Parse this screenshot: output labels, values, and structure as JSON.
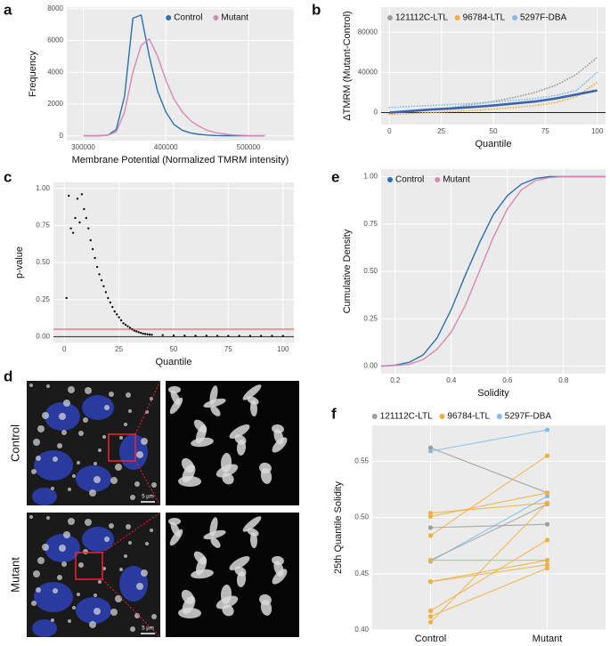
{
  "chart_data": [
    {
      "type": "line",
      "panel_label": "a",
      "xlabel": "Membrane Potential (Normalized TMRM intensity)",
      "ylabel": "Frequency",
      "x": [
        300000,
        310000,
        320000,
        330000,
        340000,
        350000,
        360000,
        370000,
        380000,
        390000,
        400000,
        410000,
        420000,
        430000,
        440000,
        450000,
        460000,
        480000,
        500000,
        520000
      ],
      "series": [
        {
          "name": "Control",
          "color": "#2c6fad",
          "values": [
            0,
            0,
            10,
            50,
            400,
            2500,
            7400,
            7600,
            5000,
            2800,
            1500,
            700,
            350,
            180,
            90,
            50,
            20,
            5,
            0,
            0
          ]
        },
        {
          "name": "Mutant",
          "color": "#d58bb0",
          "values": [
            0,
            0,
            10,
            40,
            250,
            1500,
            4000,
            5700,
            6100,
            5000,
            3500,
            2300,
            1500,
            950,
            600,
            350,
            200,
            60,
            15,
            0
          ]
        }
      ],
      "xlim": [
        280000,
        555000
      ],
      "xticks": [
        300000,
        400000,
        500000
      ],
      "ylim": [
        -300,
        8100
      ],
      "yticks": [
        0,
        2000,
        4000,
        6000,
        8000
      ],
      "grid": true,
      "legend": "top-right"
    },
    {
      "type": "line",
      "panel_label": "b",
      "xlabel": "Quantile",
      "ylabel": "ΔTMRM (Mutant-Control)",
      "x": [
        0,
        10,
        20,
        30,
        40,
        50,
        60,
        70,
        80,
        90,
        100
      ],
      "series": [
        {
          "name": "121112C-LTL",
          "color": "#9e9e9e",
          "dotted": true,
          "values": [
            -1000,
            1000,
            3000,
            5000,
            8000,
            11000,
            15000,
            20000,
            27000,
            38000,
            55000
          ]
        },
        {
          "name": "96784-LTL",
          "color": "#f0b040",
          "dotted": true,
          "values": [
            -2000,
            -1000,
            0,
            1000,
            2000,
            3500,
            5000,
            7000,
            10000,
            16000,
            30000
          ]
        },
        {
          "name": "5297F-DBA",
          "color": "#7fbfe8",
          "dotted": true,
          "values": [
            5000,
            6000,
            7000,
            8000,
            9000,
            10500,
            12000,
            14000,
            17000,
            22000,
            40000
          ]
        },
        {
          "color": "#3a64b0",
          "values": [
            0,
            1500,
            3000,
            4000,
            5500,
            7000,
            9000,
            11000,
            14000,
            18000,
            22000
          ]
        }
      ],
      "hlines": [
        {
          "value": 0,
          "color": "#222222"
        }
      ],
      "xlim": [
        -4,
        104
      ],
      "xticks": [
        0,
        25,
        50,
        75,
        100
      ],
      "ylim": [
        -12000,
        105000
      ],
      "yticks": [
        0,
        40000,
        80000
      ],
      "grid": true,
      "legend": "top-left"
    },
    {
      "type": "scatter",
      "panel_label": "c",
      "xlabel": "Quantile",
      "ylabel": "p-value",
      "color": "#111111",
      "x": [
        1,
        2,
        3,
        4,
        5,
        6,
        7,
        8,
        9,
        10,
        11,
        12,
        13,
        14,
        15,
        16,
        17,
        18,
        19,
        20,
        21,
        22,
        23,
        24,
        25,
        26,
        27,
        28,
        29,
        30,
        31,
        32,
        33,
        34,
        35,
        36,
        37,
        38,
        39,
        40,
        45,
        50,
        55,
        60,
        65,
        70,
        75,
        80,
        85,
        90,
        95,
        100
      ],
      "values": [
        0.26,
        0.95,
        0.73,
        0.7,
        0.8,
        0.93,
        0.77,
        0.96,
        0.86,
        0.8,
        0.73,
        0.65,
        0.59,
        0.53,
        0.47,
        0.42,
        0.38,
        0.34,
        0.3,
        0.26,
        0.23,
        0.2,
        0.17,
        0.15,
        0.13,
        0.11,
        0.09,
        0.08,
        0.07,
        0.06,
        0.05,
        0.04,
        0.035,
        0.03,
        0.025,
        0.02,
        0.018,
        0.016,
        0.014,
        0.013,
        0.01,
        0.008,
        0.007,
        0.006,
        0.006,
        0.005,
        0.005,
        0.005,
        0.005,
        0.005,
        0.005,
        0.005
      ],
      "hlines": [
        {
          "value": 0.05,
          "color": "#e8474a"
        },
        {
          "value": 0,
          "color": "#222222"
        }
      ],
      "xlim": [
        -5,
        105
      ],
      "xticks": [
        0,
        25,
        50,
        75,
        100
      ],
      "ylim": [
        -0.04,
        1.04
      ],
      "yticks": [
        {
          "value": 0,
          "label": "0.00"
        },
        {
          "value": 0.25,
          "label": "0.25"
        },
        {
          "value": 0.5,
          "label": "0.50"
        },
        {
          "value": 0.75,
          "label": "0.75"
        },
        {
          "value": 1,
          "label": "1.00"
        }
      ],
      "grid": true
    },
    {
      "type": "image",
      "panel_label": "d",
      "rows": [
        "Control",
        "Mutant"
      ],
      "scale_bar": "5 µm"
    },
    {
      "type": "line",
      "panel_label": "e",
      "xlabel": "Solidity",
      "ylabel": "Cumulative Density",
      "x": [
        0.15,
        0.2,
        0.25,
        0.3,
        0.35,
        0.4,
        0.45,
        0.5,
        0.55,
        0.6,
        0.65,
        0.7,
        0.75,
        0.8,
        0.85,
        0.9,
        0.95
      ],
      "series": [
        {
          "name": "Control",
          "color": "#2c6fad",
          "values": [
            0,
            0.005,
            0.02,
            0.06,
            0.15,
            0.3,
            0.48,
            0.65,
            0.8,
            0.9,
            0.96,
            0.99,
            1,
            1,
            1,
            1,
            1
          ]
        },
        {
          "name": "Mutant",
          "color": "#d58bb0",
          "values": [
            0,
            0.003,
            0.01,
            0.035,
            0.09,
            0.18,
            0.32,
            0.5,
            0.68,
            0.83,
            0.93,
            0.98,
            0.995,
            1,
            1,
            1,
            1
          ]
        }
      ],
      "xlim": [
        0.15,
        0.95
      ],
      "xticks": [
        0.2,
        0.4,
        0.6,
        0.8
      ],
      "ylim": [
        -0.04,
        1.04
      ],
      "yticks": [
        {
          "value": 0,
          "label": "0.00"
        },
        {
          "value": 0.25,
          "label": "0.25"
        },
        {
          "value": 0.5,
          "label": "0.50"
        },
        {
          "value": 0.75,
          "label": "0.75"
        },
        {
          "value": 1,
          "label": "1.00"
        }
      ],
      "grid": true,
      "legend": "top-left"
    },
    {
      "type": "paired",
      "panel_label": "f",
      "ylabel": "25th Quantile Solidity",
      "categories": [
        "Control",
        "Mutant"
      ],
      "legend_items": [
        {
          "name": "121112C-LTL",
          "color": "#9e9e9e"
        },
        {
          "name": "96784-LTL",
          "color": "#f0b040"
        },
        {
          "name": "5297F-DBA",
          "color": "#7fbfe8"
        }
      ],
      "lines": [
        {
          "color": "#7fbfe8",
          "values": [
            0.559,
            0.578
          ]
        },
        {
          "color": "#7fbfe8",
          "values": [
            0.461,
            0.519
          ]
        },
        {
          "color": "#9e9e9e",
          "values": [
            0.562,
            0.522
          ]
        },
        {
          "color": "#9e9e9e",
          "values": [
            0.491,
            0.494
          ]
        },
        {
          "color": "#9e9e9e",
          "values": [
            0.462,
            0.512
          ]
        },
        {
          "color": "#f0b040",
          "values": [
            0.504,
            0.513
          ]
        },
        {
          "color": "#f0b040",
          "values": [
            0.501,
            0.522
          ]
        },
        {
          "color": "#f0b040",
          "values": [
            0.484,
            0.555
          ]
        },
        {
          "color": "#f0b040",
          "values": [
            0.462,
            0.462
          ]
        },
        {
          "color": "#f0b040",
          "values": [
            0.443,
            0.462
          ]
        },
        {
          "color": "#f0b040",
          "values": [
            0.443,
            0.458
          ]
        },
        {
          "color": "#f0b040",
          "values": [
            0.417,
            0.48
          ]
        },
        {
          "color": "#f0b040",
          "values": [
            0.412,
            0.455
          ]
        },
        {
          "color": "#f0b040",
          "values": [
            0.407,
            0.513
          ]
        }
      ],
      "ylim": [
        0.4,
        0.582
      ],
      "yticks": [
        {
          "value": 0.4,
          "label": "0.40"
        },
        {
          "value": 0.45,
          "label": "0.45"
        },
        {
          "value": 0.5,
          "label": "0.50"
        },
        {
          "value": 0.55,
          "label": "0.55"
        }
      ],
      "grid": true,
      "legend": "top"
    }
  ]
}
